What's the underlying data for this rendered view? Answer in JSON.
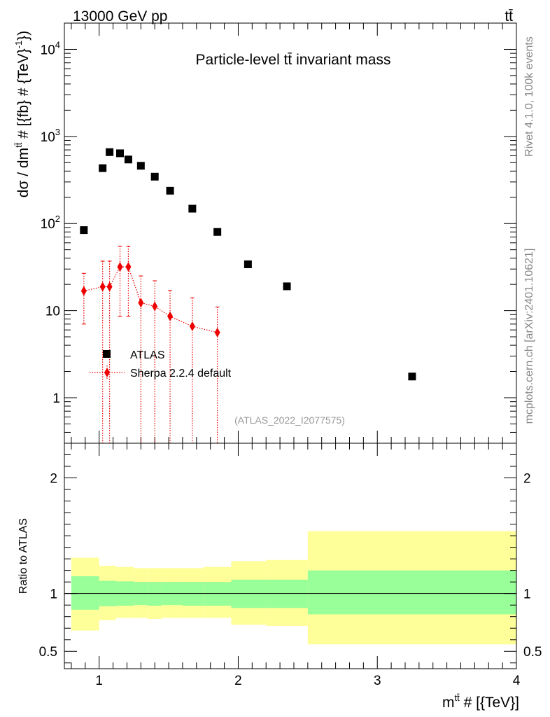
{
  "header": {
    "left": "13000 GeV pp",
    "right": "tt̄"
  },
  "side_text": {
    "rivet": "Rivet 4.1.0,  100k events",
    "mcplots": "mcplots.cern.ch [arXiv:2401.10621]"
  },
  "chart_data": [
    {
      "type": "scatter",
      "title": "Particle-level tt̄ invariant mass",
      "analysis_label": "(ATLAS_2022_I2077575)",
      "ylabel_main": "dσ / dm",
      "ylabel_sup": "tt̄",
      "ylabel_rest": " # [{fb} # {TeV}",
      "ylabel_end": ")",
      "yscale": "log",
      "xlim": [
        0.75,
        4.0
      ],
      "ylim": [
        0.3,
        20000
      ],
      "y_tick_labels": [
        {
          "value": 1,
          "label": "1"
        },
        {
          "value": 10,
          "label": "10"
        },
        {
          "value": 100,
          "label": "10",
          "exp": "2"
        },
        {
          "value": 1000,
          "label": "10",
          "exp": "3"
        },
        {
          "value": 10000,
          "label": "10",
          "exp": "4"
        }
      ],
      "series": [
        {
          "name": "ATLAS",
          "color": "#000000",
          "marker": "square",
          "x": [
            0.89,
            1.025,
            1.075,
            1.15,
            1.21,
            1.3,
            1.4,
            1.51,
            1.67,
            1.85,
            2.07,
            2.35,
            3.25
          ],
          "y": [
            84,
            432,
            660,
            640,
            543,
            460,
            345,
            238,
            148,
            80,
            34,
            19,
            1.75
          ]
        },
        {
          "name": "Sherpa 2.2.4 default",
          "color": "#ee0000",
          "marker": "diamond",
          "line": "dotted",
          "x": [
            0.89,
            1.025,
            1.075,
            1.15,
            1.21,
            1.3,
            1.4,
            1.51,
            1.67,
            1.85
          ],
          "y": [
            16.8,
            18.8,
            18.8,
            31.8,
            31.8,
            12.3,
            11.2,
            8.6,
            6.6,
            5.6
          ],
          "y_err_high": [
            26.8,
            37,
            37,
            55,
            55,
            25,
            22,
            17,
            14,
            11
          ],
          "y_err_low": [
            7.0,
            0.01,
            0.01,
            8.5,
            8.5,
            0.01,
            0.01,
            0.01,
            0.01,
            0.01
          ]
        }
      ]
    },
    {
      "type": "area",
      "ylabel": "Ratio to ATLAS",
      "xlabel_main": "m",
      "xlabel_sup": "tt̄",
      "xlabel_rest": " # [{TeV}]",
      "xlim": [
        0.75,
        4.0
      ],
      "ylim": [
        0.35,
        2.3
      ],
      "x_ticks": [
        1,
        2,
        3,
        4
      ],
      "x_tick_labels": [
        "1",
        "2",
        "3",
        "4"
      ],
      "y_ticks": [
        0.5,
        1,
        2
      ],
      "y_tick_labels": [
        "0.5",
        "1",
        "2"
      ],
      "bands": [
        {
          "name": "stat+syst",
          "color": "#ffff99",
          "bins": [
            [
              0.8,
              1.0,
              0.68,
              1.31
            ],
            [
              1.0,
              1.12,
              0.77,
              1.24
            ],
            [
              1.12,
              1.25,
              0.79,
              1.23
            ],
            [
              1.25,
              1.35,
              0.79,
              1.22
            ],
            [
              1.35,
              1.45,
              0.78,
              1.22
            ],
            [
              1.45,
              1.6,
              0.79,
              1.22
            ],
            [
              1.6,
              1.75,
              0.79,
              1.22
            ],
            [
              1.75,
              1.95,
              0.79,
              1.23
            ],
            [
              1.95,
              2.2,
              0.73,
              1.28
            ],
            [
              2.2,
              2.5,
              0.72,
              1.29
            ],
            [
              2.5,
              4.0,
              0.56,
              1.54
            ]
          ]
        },
        {
          "name": "stat",
          "color": "#99ff99",
          "bins": [
            [
              0.8,
              1.0,
              0.86,
              1.15
            ],
            [
              1.0,
              1.12,
              0.89,
              1.11
            ],
            [
              1.12,
              1.25,
              0.895,
              1.105
            ],
            [
              1.25,
              1.35,
              0.9,
              1.1
            ],
            [
              1.35,
              1.45,
              0.895,
              1.1
            ],
            [
              1.45,
              1.6,
              0.9,
              1.1
            ],
            [
              1.6,
              1.75,
              0.895,
              1.1
            ],
            [
              1.75,
              1.95,
              0.895,
              1.1
            ],
            [
              1.95,
              2.2,
              0.875,
              1.12
            ],
            [
              2.2,
              2.5,
              0.875,
              1.12
            ],
            [
              2.5,
              4.0,
              0.82,
              1.2
            ]
          ]
        }
      ],
      "reference_line": 1.0
    }
  ]
}
